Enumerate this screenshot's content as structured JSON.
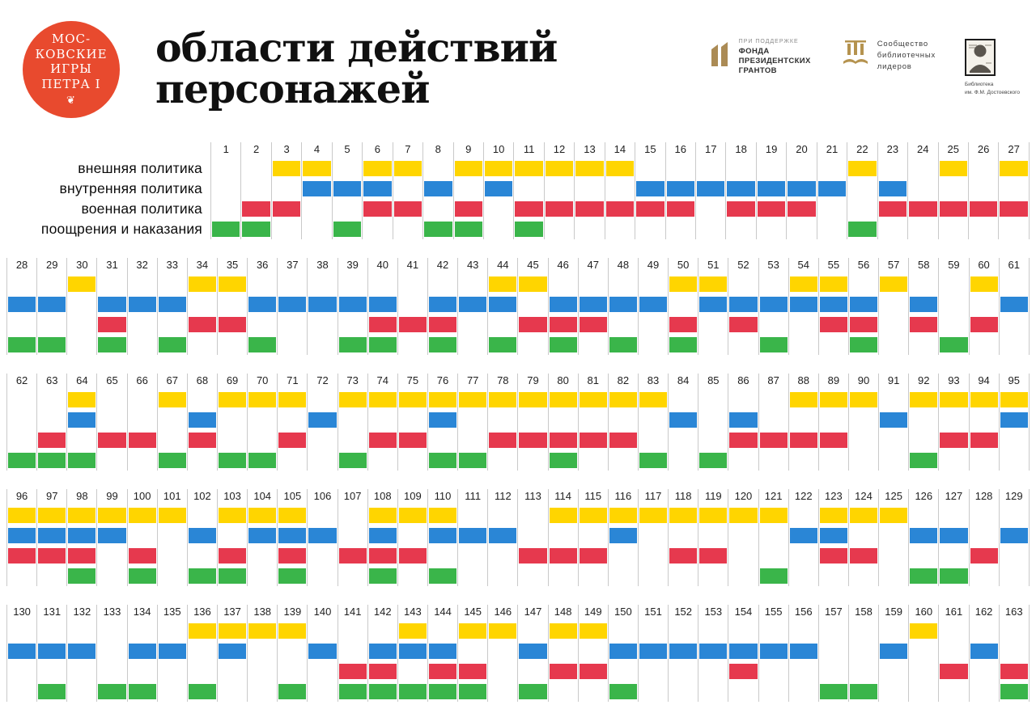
{
  "badge": {
    "lines": [
      "МОС-",
      "КОВСКИЕ",
      "ИГРЫ",
      "ПЕТРА I"
    ],
    "glyph": "❦",
    "color": "#e84a2e"
  },
  "title": "области действий персонажей",
  "partners": {
    "grants": {
      "caption": "ПРИ ПОДДЕРЖКЕ",
      "lines": [
        "ФОНДА",
        "ПРЕЗИДЕНТСКИХ",
        "ГРАНТОВ"
      ]
    },
    "leaders": {
      "lines": [
        "Сообщество",
        "библиотечных",
        "лидеров"
      ]
    },
    "library": {
      "lines": [
        "Библиотека",
        "им. Ф.М. Достоевского"
      ]
    }
  },
  "chart_data": {
    "type": "heatmap",
    "title": "области действий персонажей",
    "x_range": [
      1,
      163
    ],
    "layout": "5 bands of character numbers; 4 category rows per band; filled cell = category applies",
    "categories": [
      {
        "key": "y",
        "slug": "foreign-policy",
        "label": "внешняя политика",
        "color": "#ffd500"
      },
      {
        "key": "b",
        "slug": "domestic-policy",
        "label": "внутренняя политика",
        "color": "#2a86d6"
      },
      {
        "key": "r",
        "slug": "military-policy",
        "label": "военная политика",
        "color": "#e6394e"
      },
      {
        "key": "g",
        "slug": "rewards-and-punishments",
        "label": "поощрения и наказания",
        "color": "#3ab54a"
      }
    ],
    "bands": [
      {
        "start": 1,
        "end": 27,
        "cells": {
          "1": "g",
          "2": "rg",
          "3": "yr",
          "4": "yb",
          "5": "bg",
          "6": "ybr",
          "7": "yr",
          "8": "bg",
          "9": "yrg",
          "10": "yb",
          "11": "yrg",
          "12": "yr",
          "13": "yr",
          "14": "yr",
          "15": "br",
          "16": "br",
          "17": "b",
          "18": "br",
          "19": "br",
          "20": "br",
          "21": "b",
          "22": "yg",
          "23": "br",
          "24": "r",
          "25": "yr",
          "26": "r",
          "27": "yr"
        }
      },
      {
        "start": 28,
        "end": 61,
        "cells": {
          "28": "bg",
          "29": "bg",
          "30": "y",
          "31": "brg",
          "32": "b",
          "33": "bg",
          "34": "yr",
          "35": "yr",
          "36": "bg",
          "37": "b",
          "38": "b",
          "39": "bg",
          "40": "brg",
          "41": "r",
          "42": "brg",
          "43": "b",
          "44": "ybg",
          "45": "yr",
          "46": "brg",
          "47": "br",
          "48": "bg",
          "49": "b",
          "50": "yrg",
          "51": "yb",
          "52": "br",
          "53": "bg",
          "54": "yb",
          "55": "ybr",
          "56": "brg",
          "57": "y",
          "58": "br",
          "59": "g",
          "60": "yr",
          "61": "b"
        }
      },
      {
        "start": 62,
        "end": 95,
        "cells": {
          "62": "g",
          "63": "rg",
          "64": "ybg",
          "65": "r",
          "66": "r",
          "67": "yg",
          "68": "br",
          "69": "yg",
          "70": "yg",
          "71": "yr",
          "72": "b",
          "73": "yg",
          "74": "yr",
          "75": "yr",
          "76": "ybg",
          "77": "yg",
          "78": "yr",
          "79": "yr",
          "80": "yrg",
          "81": "yr",
          "82": "yr",
          "83": "yg",
          "84": "b",
          "85": "g",
          "86": "br",
          "87": "r",
          "88": "yr",
          "89": "yr",
          "90": "y",
          "91": "b",
          "92": "yg",
          "93": "yr",
          "94": "yr",
          "95": "yb"
        }
      },
      {
        "start": 96,
        "end": 129,
        "cells": {
          "96": "ybr",
          "97": "ybr",
          "98": "ybrg",
          "99": "yb",
          "100": "yrg",
          "101": "y",
          "102": "bg",
          "103": "yrg",
          "104": "yb",
          "105": "ybrg",
          "106": "b",
          "107": "r",
          "108": "ybrg",
          "109": "yr",
          "110": "ybg",
          "111": "b",
          "112": "b",
          "113": "r",
          "114": "yr",
          "115": "yr",
          "116": "yb",
          "117": "y",
          "118": "yr",
          "119": "yr",
          "120": "y",
          "121": "yg",
          "122": "b",
          "123": "ybr",
          "124": "yr",
          "125": "y",
          "126": "bg",
          "127": "bg",
          "128": "r",
          "129": "b"
        }
      },
      {
        "start": 130,
        "end": 163,
        "cells": {
          "130": "b",
          "131": "bg",
          "132": "b",
          "133": "g",
          "134": "bg",
          "135": "b",
          "136": "yg",
          "137": "yb",
          "138": "y",
          "139": "yg",
          "140": "b",
          "141": "rg",
          "142": "brg",
          "143": "ybg",
          "144": "brg",
          "145": "yrg",
          "146": "y",
          "147": "bg",
          "148": "yr",
          "149": "yr",
          "150": "bg",
          "151": "b",
          "152": "b",
          "153": "b",
          "154": "br",
          "155": "b",
          "156": "b",
          "157": "g",
          "158": "g",
          "159": "b",
          "160": "y",
          "161": "r",
          "162": "b",
          "163": "rg"
        }
      }
    ]
  }
}
